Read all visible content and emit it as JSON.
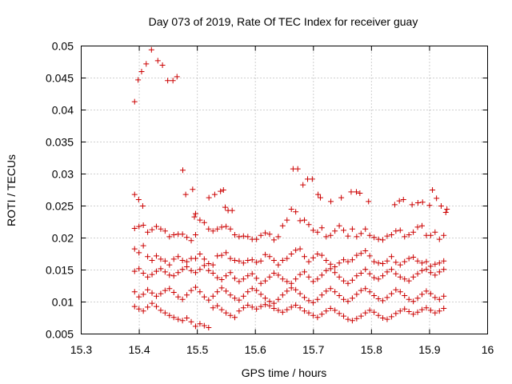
{
  "chart_data": {
    "type": "scatter",
    "title": "Day 073 of 2019, Rate Of TEC Index for receiver guay",
    "xlabel": "GPS time / hours",
    "ylabel": "ROTI / TECUs",
    "xlim": [
      15.3,
      16.0
    ],
    "ylim": [
      0.005,
      0.05
    ],
    "xticks": [
      15.3,
      15.4,
      15.5,
      15.6,
      15.7,
      15.8,
      15.9,
      16.0
    ],
    "xtick_labels": [
      "15.3",
      "15.4",
      "15.5",
      "15.6",
      "15.7",
      "15.8",
      "15.9",
      "16"
    ],
    "yticks": [
      0.005,
      0.01,
      0.015,
      0.02,
      0.025,
      0.03,
      0.035,
      0.04,
      0.045,
      0.05
    ],
    "ytick_labels": [
      "0.005",
      "0.01",
      "0.015",
      "0.02",
      "0.025",
      "0.03",
      "0.035",
      "0.04",
      "0.045",
      "0.05"
    ],
    "grid": true,
    "marker": "+",
    "marker_color": "#cc0000",
    "series": [
      {
        "name": "ROTI",
        "points": [
          [
            15.392,
            0.0413
          ],
          [
            15.398,
            0.0447
          ],
          [
            15.404,
            0.046
          ],
          [
            15.412,
            0.0472
          ],
          [
            15.421,
            0.0494
          ],
          [
            15.432,
            0.0477
          ],
          [
            15.44,
            0.047
          ],
          [
            15.449,
            0.0446
          ],
          [
            15.458,
            0.0446
          ],
          [
            15.465,
            0.0452
          ],
          [
            15.475,
            0.0306
          ],
          [
            15.392,
            0.0268
          ],
          [
            15.399,
            0.026
          ],
          [
            15.406,
            0.025
          ],
          [
            15.48,
            0.0268
          ],
          [
            15.492,
            0.0276
          ],
          [
            15.497,
            0.0238
          ],
          [
            15.495,
            0.0233
          ],
          [
            15.52,
            0.0263
          ],
          [
            15.53,
            0.0268
          ],
          [
            15.54,
            0.0273
          ],
          [
            15.545,
            0.0275
          ],
          [
            15.548,
            0.0248
          ],
          [
            15.553,
            0.0243
          ],
          [
            15.56,
            0.0243
          ],
          [
            15.665,
            0.0308
          ],
          [
            15.673,
            0.0308
          ],
          [
            15.682,
            0.0283
          ],
          [
            15.69,
            0.0292
          ],
          [
            15.698,
            0.0292
          ],
          [
            15.708,
            0.0268
          ],
          [
            15.712,
            0.0263
          ],
          [
            15.73,
            0.0257
          ],
          [
            15.748,
            0.0263
          ],
          [
            15.765,
            0.0272
          ],
          [
            15.774,
            0.0272
          ],
          [
            15.78,
            0.027
          ],
          [
            15.795,
            0.0257
          ],
          [
            15.84,
            0.0252
          ],
          [
            15.848,
            0.0258
          ],
          [
            15.855,
            0.026
          ],
          [
            15.87,
            0.0252
          ],
          [
            15.88,
            0.0255
          ],
          [
            15.888,
            0.0256
          ],
          [
            15.9,
            0.0251
          ],
          [
            15.905,
            0.0275
          ],
          [
            15.912,
            0.0262
          ],
          [
            15.92,
            0.025
          ],
          [
            15.928,
            0.024
          ],
          [
            15.93,
            0.0245
          ]
        ],
        "band_a": {
          "x_start": 15.392,
          "x_end": 15.93,
          "step": 0.0075,
          "values": [
            0.0215,
            0.0218,
            0.022,
            0.0209,
            0.0213,
            0.0218,
            0.0214,
            0.0211,
            0.0202,
            0.0205,
            0.0206,
            0.0206,
            0.0201,
            0.0196,
            0.0205,
            0.0228,
            0.0224,
            0.0214,
            0.0211,
            0.0214,
            0.0217,
            0.0218,
            0.0214,
            0.0205,
            0.0202,
            0.0203,
            0.0202,
            0.0198,
            0.0198,
            0.0204,
            0.0208,
            0.0206,
            0.0197,
            0.0202,
            0.0219,
            0.0228,
            0.0245,
            0.0241,
            0.0227,
            0.0228,
            0.0221,
            0.0212,
            0.0209,
            0.0216,
            0.0202,
            0.0204,
            0.0211,
            0.0219,
            0.0212,
            0.0203,
            0.0214,
            0.0202,
            0.0207,
            0.0214,
            0.0204,
            0.0201,
            0.0198,
            0.0197,
            0.0203,
            0.0205,
            0.0211,
            0.0212,
            0.0202,
            0.0205,
            0.0209,
            0.0217,
            0.0219,
            0.0204,
            0.0204,
            0.0209,
            0.0198,
            0.0204
          ]
        },
        "band_b": {
          "x_start": 15.392,
          "x_end": 15.93,
          "step": 0.0075,
          "values": [
            0.0183,
            0.0177,
            0.0188,
            0.0171,
            0.0165,
            0.0172,
            0.0167,
            0.0164,
            0.0158,
            0.0167,
            0.0171,
            0.0165,
            0.0163,
            0.0168,
            0.0168,
            0.0175,
            0.0167,
            0.016,
            0.0158,
            0.0172,
            0.0173,
            0.0177,
            0.0168,
            0.0165,
            0.0164,
            0.0161,
            0.0165,
            0.0166,
            0.0162,
            0.0164,
            0.0174,
            0.0171,
            0.0165,
            0.0158,
            0.0165,
            0.0168,
            0.0175,
            0.0181,
            0.0183,
            0.0171,
            0.0163,
            0.0169,
            0.0175,
            0.0173,
            0.0165,
            0.0159,
            0.0155,
            0.0161,
            0.0166,
            0.0163,
            0.0166,
            0.0173,
            0.0176,
            0.018,
            0.0172,
            0.0163,
            0.0161,
            0.016,
            0.0164,
            0.0171,
            0.0162,
            0.0158,
            0.0163,
            0.0168,
            0.017,
            0.0164,
            0.0161,
            0.0163,
            0.0156,
            0.0159,
            0.0161,
            0.0164
          ]
        },
        "band_c": {
          "x_start": 15.392,
          "x_end": 15.93,
          "step": 0.0075,
          "values": [
            0.0148,
            0.0152,
            0.0145,
            0.0139,
            0.0143,
            0.0148,
            0.0152,
            0.0147,
            0.0142,
            0.0141,
            0.0146,
            0.0151,
            0.0155,
            0.0149,
            0.0146,
            0.0151,
            0.0157,
            0.0149,
            0.0145,
            0.0138,
            0.0135,
            0.0141,
            0.0146,
            0.0137,
            0.0132,
            0.0136,
            0.0141,
            0.0144,
            0.0137,
            0.0129,
            0.0133,
            0.0139,
            0.0145,
            0.0142,
            0.0136,
            0.0132,
            0.0129,
            0.0136,
            0.0143,
            0.0147,
            0.0139,
            0.0132,
            0.0136,
            0.0142,
            0.0149,
            0.0152,
            0.0146,
            0.0139,
            0.0133,
            0.0129,
            0.0134,
            0.0141,
            0.0145,
            0.0151,
            0.0144,
            0.0138,
            0.0136,
            0.0141,
            0.0147,
            0.0151,
            0.0144,
            0.0139,
            0.0136,
            0.0133,
            0.0139,
            0.0144,
            0.0149,
            0.0151,
            0.0146,
            0.0142,
            0.0147,
            0.0151
          ]
        },
        "band_d": {
          "x_start": 15.392,
          "x_end": 15.93,
          "step": 0.0075,
          "values": [
            0.0116,
            0.0108,
            0.0112,
            0.0119,
            0.0114,
            0.0109,
            0.0113,
            0.0118,
            0.0121,
            0.0115,
            0.0108,
            0.0104,
            0.0111,
            0.0118,
            0.0123,
            0.0116,
            0.0108,
            0.0103,
            0.0109,
            0.0116,
            0.0122,
            0.0117,
            0.0111,
            0.0106,
            0.0103,
            0.0109,
            0.0116,
            0.0121,
            0.0118,
            0.0112,
            0.0106,
            0.0101,
            0.0098,
            0.0104,
            0.0111,
            0.0117,
            0.0122,
            0.0119,
            0.0113,
            0.0107,
            0.0102,
            0.0099,
            0.0104,
            0.0111,
            0.0117,
            0.0121,
            0.0116,
            0.011,
            0.0104,
            0.0101,
            0.0106,
            0.0112,
            0.0118,
            0.0121,
            0.0116,
            0.011,
            0.0105,
            0.0102,
            0.0107,
            0.0113,
            0.0119,
            0.0116,
            0.011,
            0.0104,
            0.0101,
            0.0106,
            0.0112,
            0.0117,
            0.0113,
            0.0107,
            0.0104,
            0.0109
          ]
        },
        "band_e": {
          "x_start": 15.392,
          "x_end": 15.93,
          "step": 0.0075,
          "values": [
            0.0093,
            0.0089,
            0.0086,
            0.0092,
            0.0098,
            0.0093,
            0.0087,
            0.0083,
            0.0079,
            0.0076,
            0.0073,
            0.0071,
            0.0075,
            0.0069,
            0.0062,
            0.0066,
            0.0063,
            0.006,
            0.0091,
            0.0094,
            0.0088,
            0.0083,
            0.0079,
            0.0076,
            0.0086,
            0.0091,
            0.0095,
            0.0092,
            0.0089,
            0.0093,
            0.0096,
            0.0094,
            0.009,
            0.0087,
            0.0084,
            0.0088,
            0.0092,
            0.0095,
            0.0091,
            0.0086,
            0.0083,
            0.0079,
            0.0076,
            0.0081,
            0.0086,
            0.009,
            0.0087,
            0.0082,
            0.0078,
            0.0073,
            0.0071,
            0.0074,
            0.0078,
            0.0083,
            0.0087,
            0.0084,
            0.0079,
            0.0075,
            0.0073,
            0.0077,
            0.0082,
            0.0086,
            0.0089,
            0.0085,
            0.0081,
            0.0084,
            0.0088,
            0.0091,
            0.0087,
            0.0083,
            0.0086,
            0.009
          ]
        }
      }
    ]
  }
}
